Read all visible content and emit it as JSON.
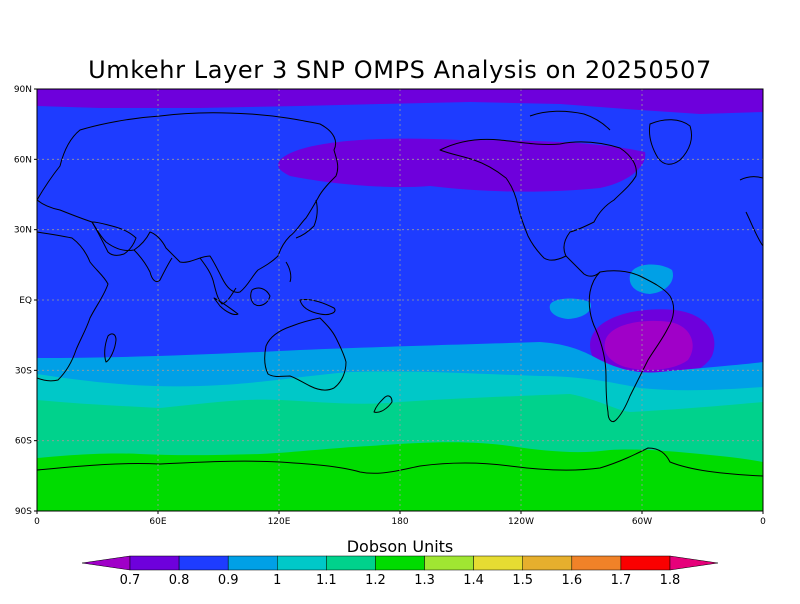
{
  "title": "Umkehr Layer 3 SNP OMPS Analysis on 20250507",
  "map": {
    "projection": "equirectangular",
    "lon_range": [
      0,
      360
    ],
    "lat_range": [
      -90,
      90
    ],
    "grid": "dotted",
    "y_ticks": [
      {
        "lat": 90,
        "label": "90N"
      },
      {
        "lat": 60,
        "label": "60N"
      },
      {
        "lat": 30,
        "label": "30N"
      },
      {
        "lat": 0,
        "label": "EQ"
      },
      {
        "lat": -30,
        "label": "30S"
      },
      {
        "lat": -60,
        "label": "60S"
      },
      {
        "lat": -90,
        "label": "90S"
      }
    ],
    "x_ticks": [
      {
        "lon": 0,
        "label": "0"
      },
      {
        "lon": 60,
        "label": "60E"
      },
      {
        "lon": 120,
        "label": "120E"
      },
      {
        "lon": 180,
        "label": "180"
      },
      {
        "lon": 240,
        "label": "120W"
      },
      {
        "lon": 300,
        "label": "60W"
      },
      {
        "lon": 360,
        "label": "0"
      }
    ]
  },
  "colorbar": {
    "units_label": "Dobson Units",
    "colors": [
      "#a000c8",
      "#6e00dc",
      "#1e3cff",
      "#00a0e6",
      "#00c8c8",
      "#00d28c",
      "#00dc00",
      "#a0e632",
      "#e6dc32",
      "#e6af2d",
      "#f08228",
      "#fa0000",
      "#e6007a"
    ],
    "tick_labels": [
      "0.7",
      "0.8",
      "0.9",
      "1",
      "1.1",
      "1.2",
      "1.3",
      "1.4",
      "1.5",
      "1.6",
      "1.7",
      "1.8"
    ]
  },
  "field_colors": {
    "very_low": "#a000c8",
    "low": "#6e00dc",
    "base": "#1e3cff",
    "b3": "#00a0e6",
    "b4": "#00c8c8",
    "b5": "#00d28c",
    "b6": "#00dc00"
  }
}
